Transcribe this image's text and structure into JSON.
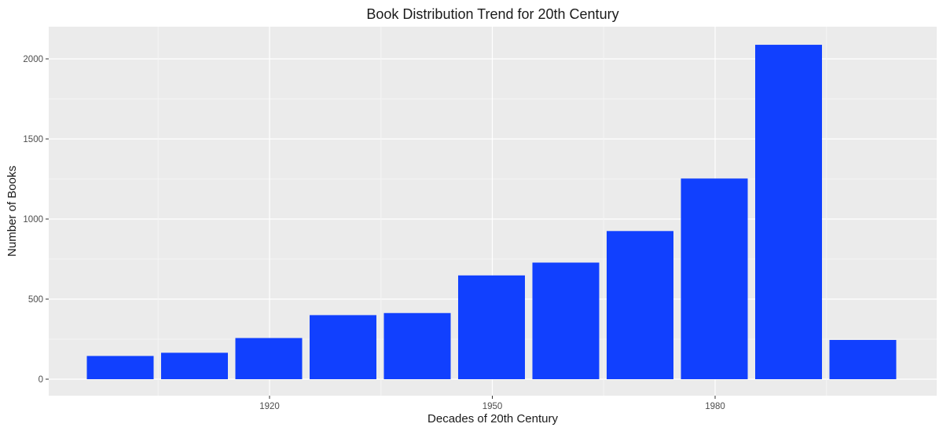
{
  "chart_data": {
    "type": "bar",
    "title": "Book Distribution Trend for 20th Century",
    "xlabel": "Decades of 20th Century",
    "ylabel": "Number of Books",
    "categories": [
      1900,
      1910,
      1920,
      1930,
      1940,
      1950,
      1960,
      1970,
      1980,
      1990
    ],
    "values": [
      145,
      165,
      257,
      400,
      413,
      648,
      728,
      925,
      1253,
      2088
    ],
    "extra_bar": {
      "position_note": "trailing",
      "value": 245
    },
    "x_ticks": [
      1920,
      1950,
      1980
    ],
    "y_ticks": [
      0,
      500,
      1000,
      1500,
      2000
    ],
    "ylim": [
      -120,
      2200
    ],
    "grid": true,
    "legend": "none",
    "colors": {
      "bar": "#1140FE",
      "panel": "#EBEBEB",
      "grid_major": "#FFFFFF",
      "grid_minor": "#F5F5F5"
    }
  }
}
